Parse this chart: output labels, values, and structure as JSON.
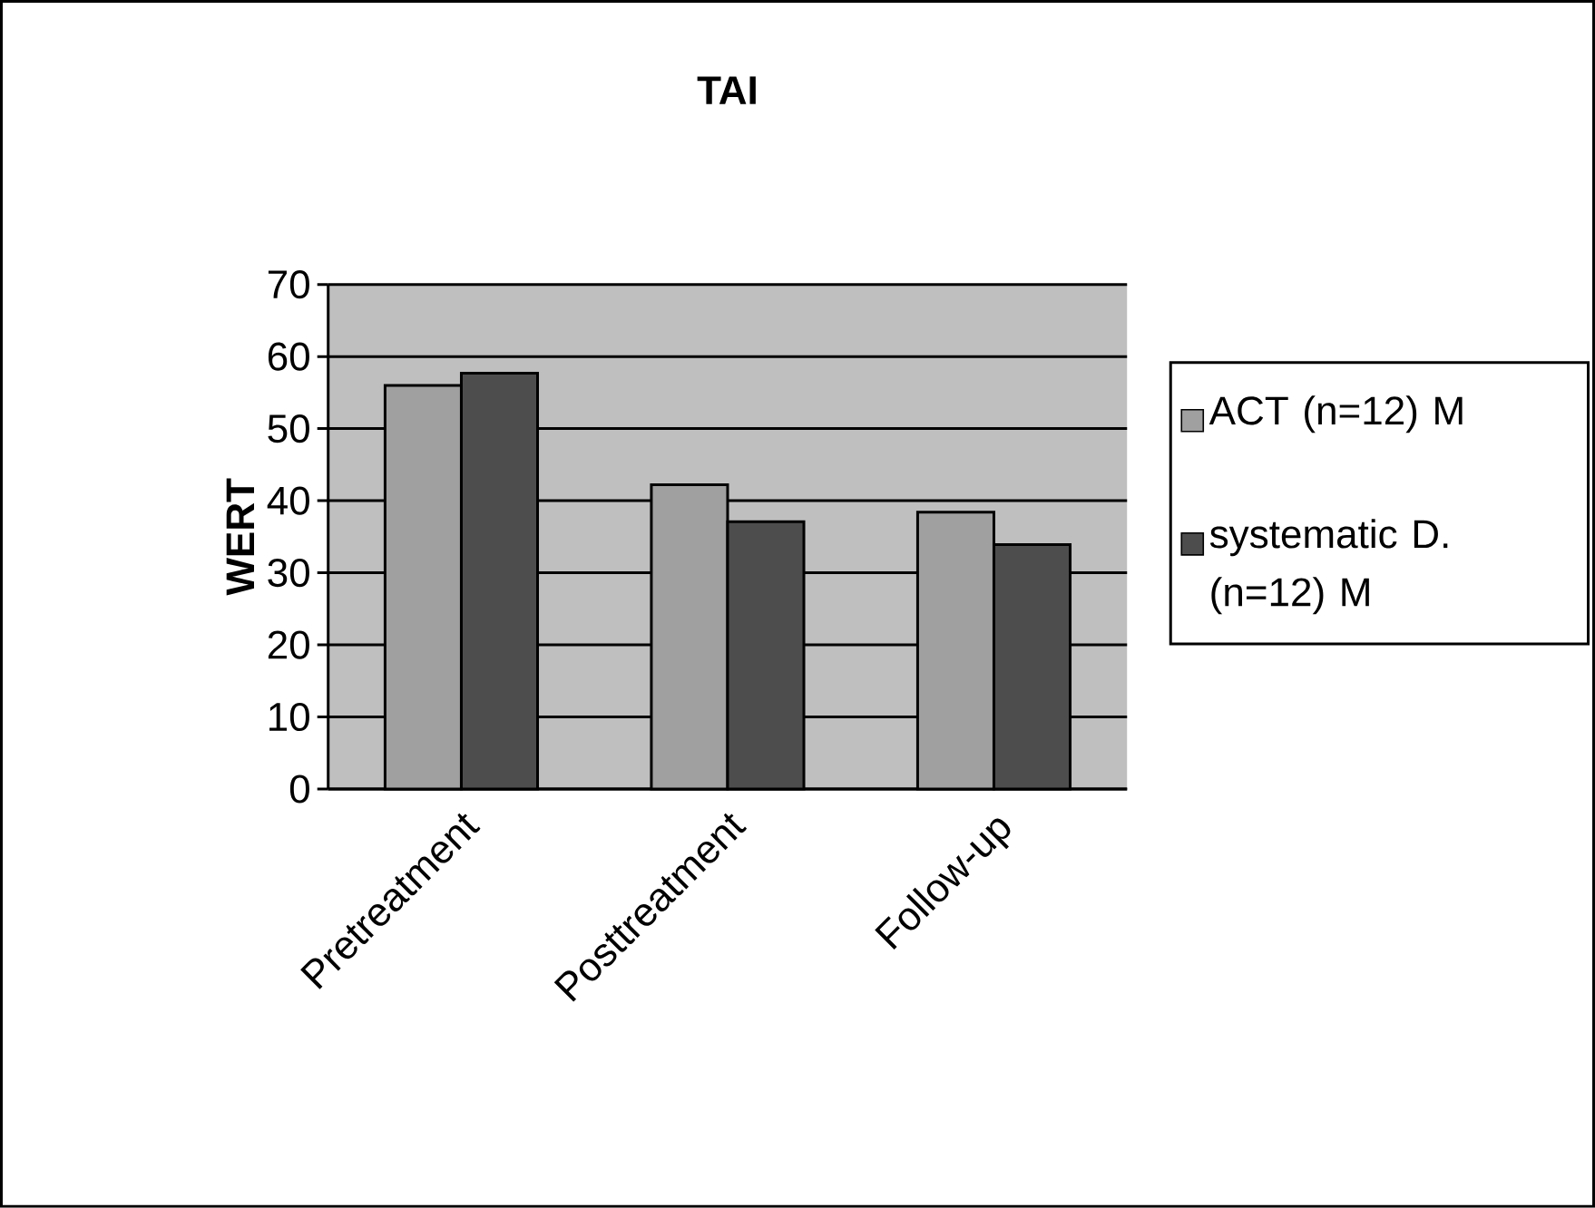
{
  "chart_data": {
    "type": "bar",
    "title": "TAI",
    "ylabel": "WERT",
    "categories": [
      "Pretreatment",
      "Posttreatment",
      "Follow-up"
    ],
    "series": [
      {
        "name": "ACT (n=12) M",
        "color": "#a0a0a0",
        "values": [
          56,
          42.2,
          38.4
        ]
      },
      {
        "name": "systematic D. (n=12) M",
        "color": "#4d4d4d",
        "values": [
          57.7,
          37.1,
          33.9
        ]
      }
    ],
    "ylim": [
      0,
      70
    ],
    "yticks": [
      0,
      10,
      20,
      30,
      40,
      50,
      60,
      70
    ],
    "grid": "y",
    "legend": "right"
  }
}
